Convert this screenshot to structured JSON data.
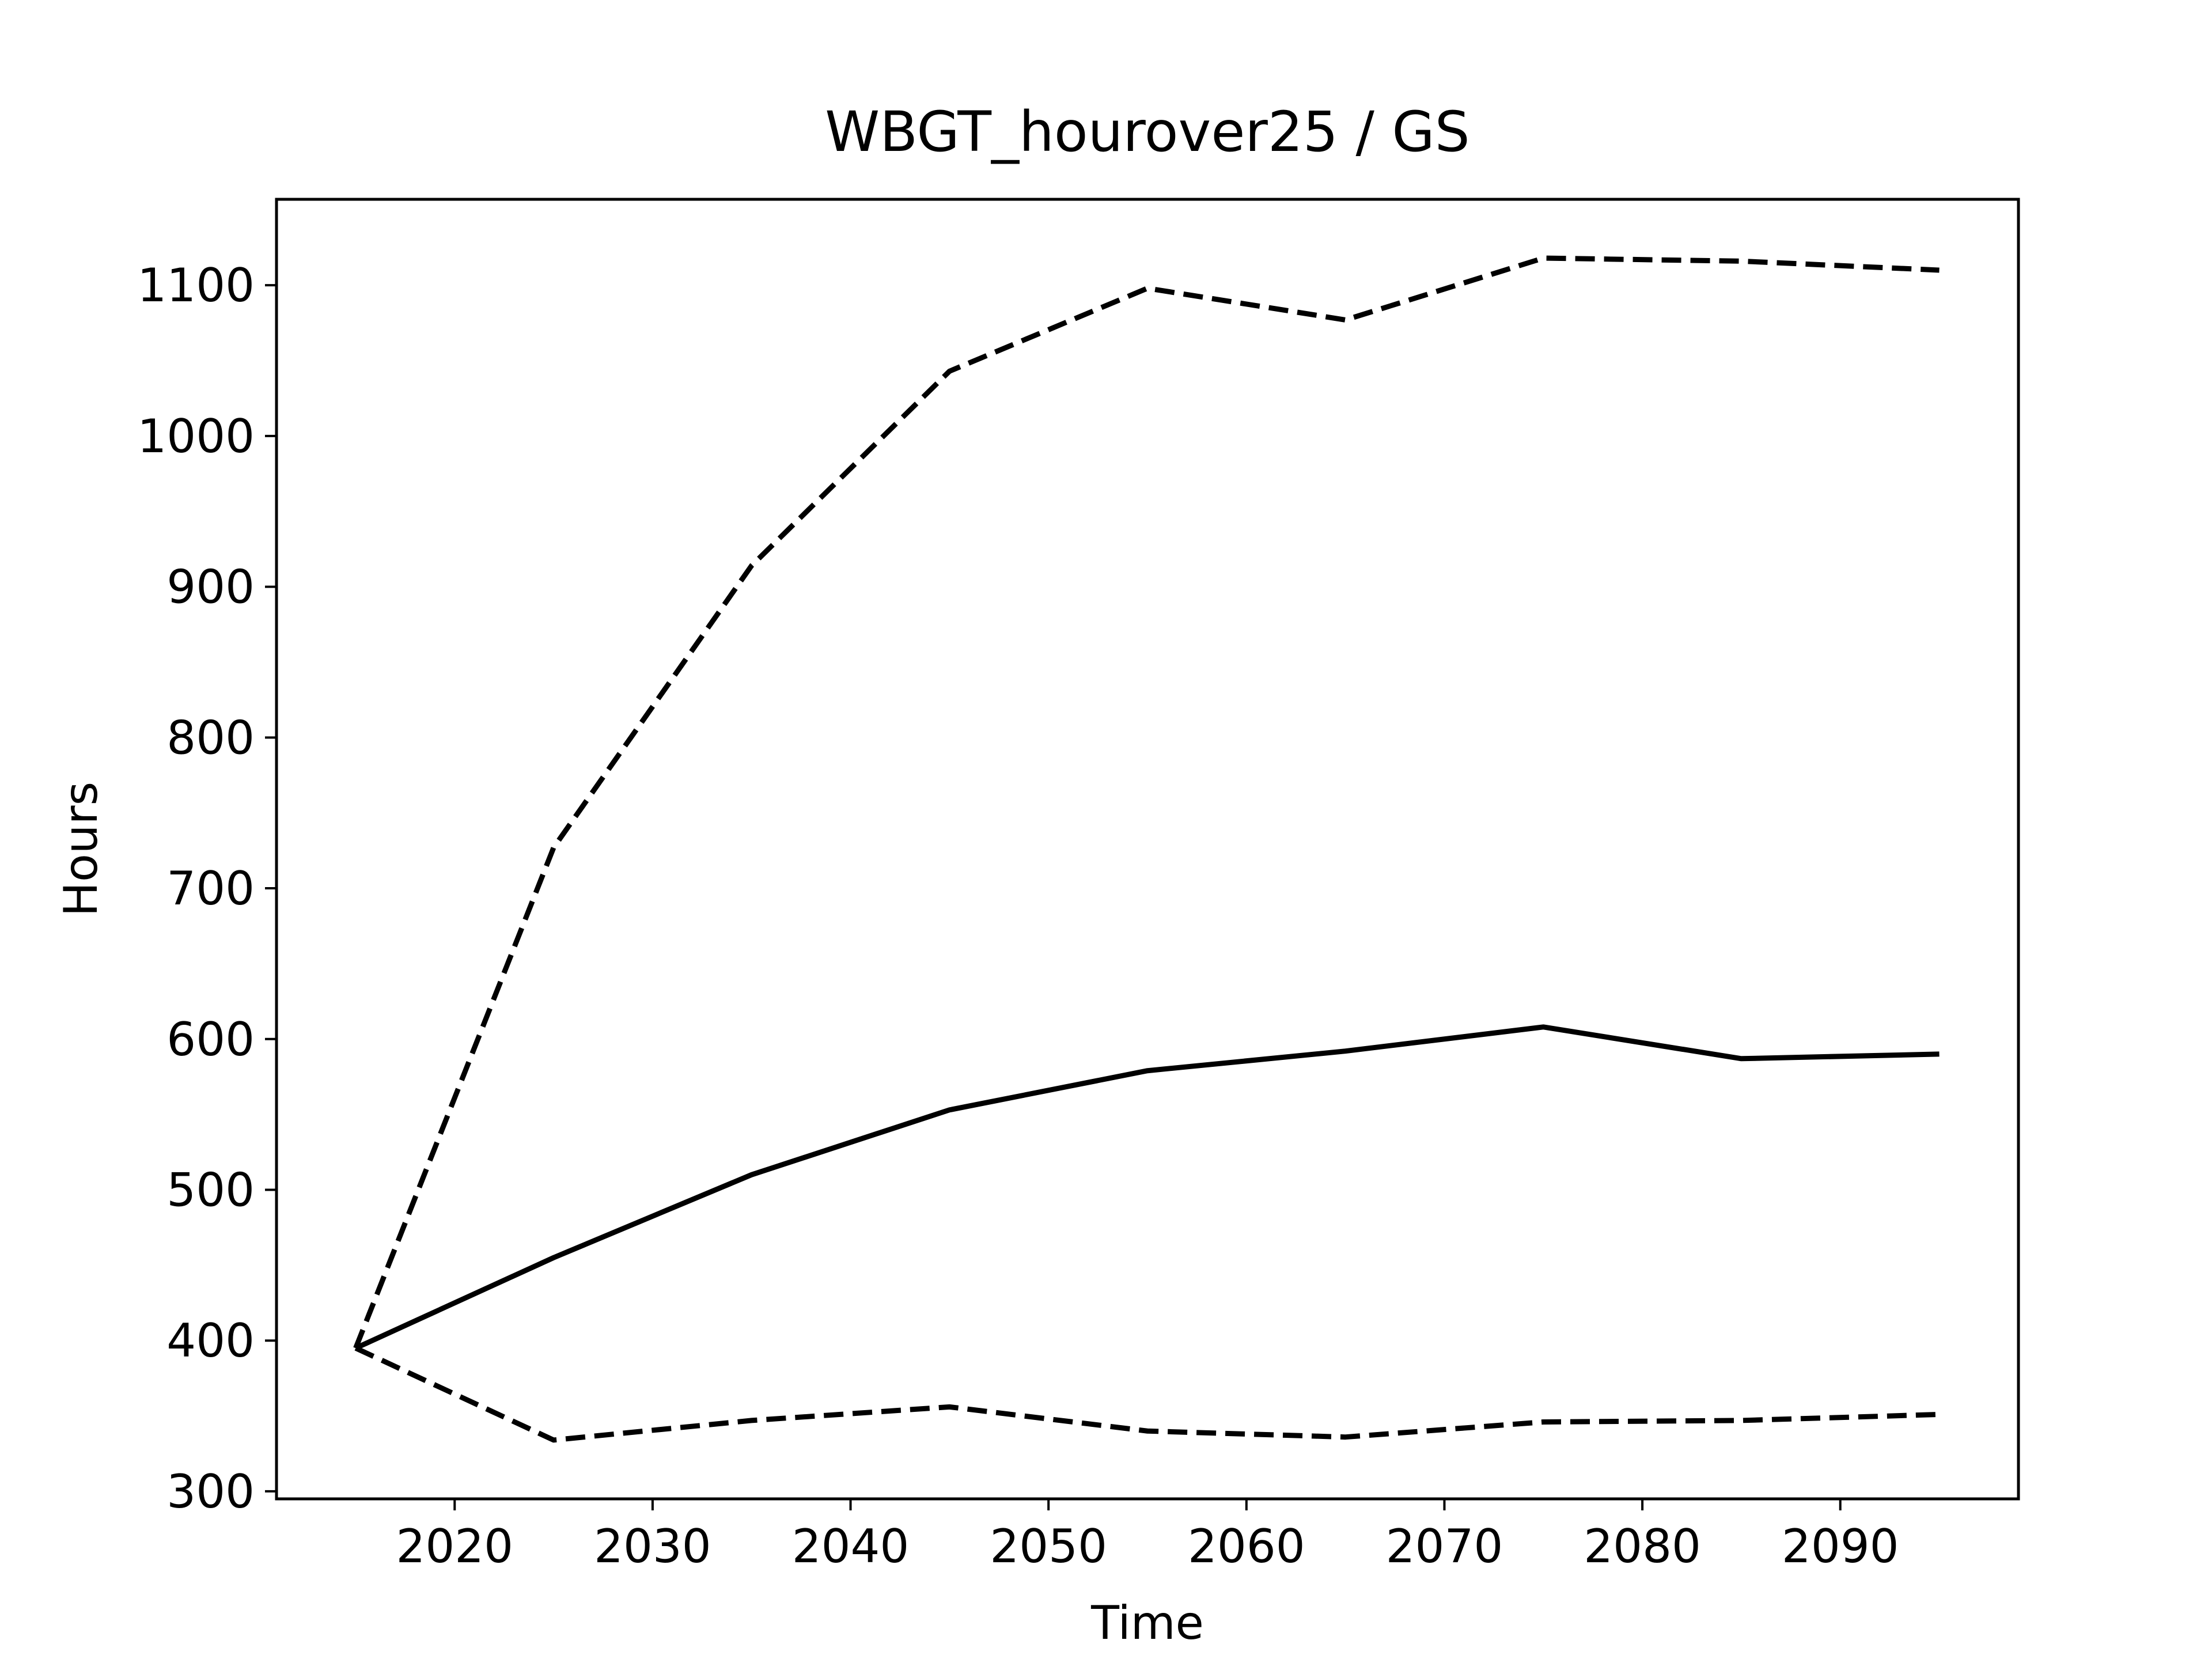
{
  "chart_data": {
    "type": "line",
    "title": "WBGT_hourover25 / GS",
    "xlabel": "Time",
    "ylabel": "Hours",
    "xlim": [
      2011,
      2099
    ],
    "ylim": [
      295,
      1157
    ],
    "xticks": [
      2020,
      2030,
      2040,
      2050,
      2060,
      2070,
      2080,
      2090
    ],
    "yticks": [
      300,
      400,
      500,
      600,
      700,
      800,
      900,
      1000,
      1100
    ],
    "grid": false,
    "legend": "none",
    "x": [
      2015,
      2025,
      2035,
      2045,
      2055,
      2065,
      2075,
      2085,
      2095
    ],
    "series": [
      {
        "style": "dashed",
        "color": "#000000",
        "values": [
          395,
          727,
          914,
          1043,
          1098,
          1077,
          1118,
          1116,
          1110
        ]
      },
      {
        "style": "solid",
        "color": "#000000",
        "values": [
          395,
          455,
          510,
          553,
          579,
          592,
          608,
          587,
          590
        ]
      },
      {
        "style": "dashed",
        "color": "#000000",
        "values": [
          395,
          334,
          347,
          356,
          340,
          336,
          346,
          347,
          351
        ]
      }
    ]
  }
}
